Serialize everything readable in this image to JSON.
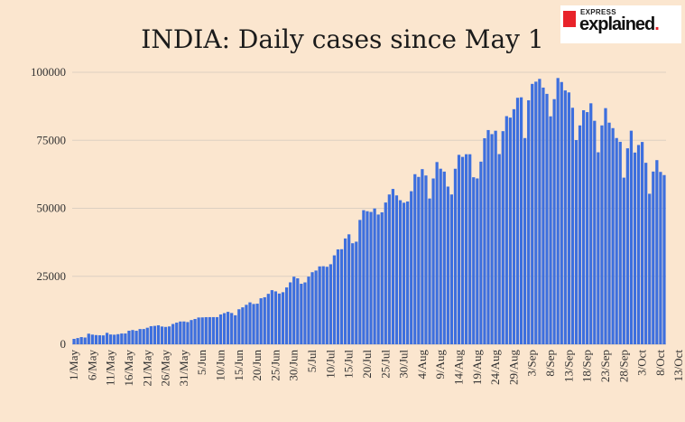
{
  "logo": {
    "top": "EXPRESS",
    "main": "explained",
    "dot": "."
  },
  "chart_data": {
    "type": "bar",
    "title": "INDIA: Daily cases since May 1",
    "xlabel": "",
    "ylabel": "",
    "ylim": [
      0,
      100000
    ],
    "yticks": [
      "0",
      "25000",
      "50000",
      "75000",
      "100000"
    ],
    "grid": true,
    "bar_color": "#3d6fde",
    "start_date": "1/May",
    "xtick_labels": [
      "1/May",
      "6/May",
      "11/May",
      "16/May",
      "21/May",
      "26/May",
      "31/May",
      "5/Jun",
      "10/Jun",
      "15/Jun",
      "20/Jun",
      "25/Jun",
      "30/Jun",
      "5/Jul",
      "10/Jul",
      "15/Jul",
      "20/Jul",
      "25/Jul",
      "30/Jul",
      "4/Aug",
      "9/Aug",
      "14/Aug",
      "19/Aug",
      "24/Aug",
      "29/Aug",
      "3/Sep",
      "8/Sep",
      "13/Sep",
      "18/Sep",
      "23/Sep",
      "28/Sep",
      "3/Oct",
      "8/Oct",
      "13/Oct"
    ],
    "values": [
      1993,
      2293,
      2644,
      2487,
      3900,
      3561,
      3390,
      3320,
      3277,
      4213,
      3604,
      3525,
      3722,
      3967,
      3970,
      4987,
      5242,
      4970,
      5611,
      5609,
      6088,
      6654,
      6767,
      6977,
      6535,
      6387,
      6566,
      7466,
      7964,
      8380,
      8392,
      8171,
      8909,
      9304,
      9851,
      9887,
      9971,
      9983,
      9987,
      9985,
      10956,
      11458,
      11929,
      11502,
      10667,
      12881,
      13586,
      14516,
      15413,
      14821,
      14933,
      16922,
      17296,
      18552,
      19906,
      19459,
      18653,
      19148,
      20903,
      22771,
      24850,
      24248,
      22252,
      22752,
      24879,
      26506,
      27114,
      28637,
      28701,
      28498,
      29429,
      32695,
      34884,
      34956,
      38902,
      40425,
      37148,
      37724,
      45720,
      49310,
      48916,
      48661,
      49931,
      47704,
      48513,
      52123,
      55079,
      57118,
      54736,
      52972,
      52050,
      52509,
      56282,
      62538,
      61537,
      64399,
      62064,
      53601,
      60963,
      66999,
      64553,
      63490,
      57981,
      55079,
      64531,
      69652,
      68898,
      69878,
      69874,
      61408,
      60975,
      67151,
      75760,
      78761,
      77266,
      78512,
      69921,
      78357,
      83883,
      83341,
      86432,
      90632,
      90802,
      75809,
      89706,
      95735,
      96551,
      97570,
      94372,
      92071,
      83809,
      90123,
      97894,
      96424,
      93337,
      92605,
      86961,
      75083,
      80472,
      86052,
      85362,
      88600,
      82170,
      70589,
      80472,
      86821,
      81484,
      79476,
      75829,
      74442,
      61267,
      72049,
      78524,
      70496,
      73272,
      74383,
      66732,
      55342,
      63509,
      67708,
      63371,
      62212
    ]
  }
}
